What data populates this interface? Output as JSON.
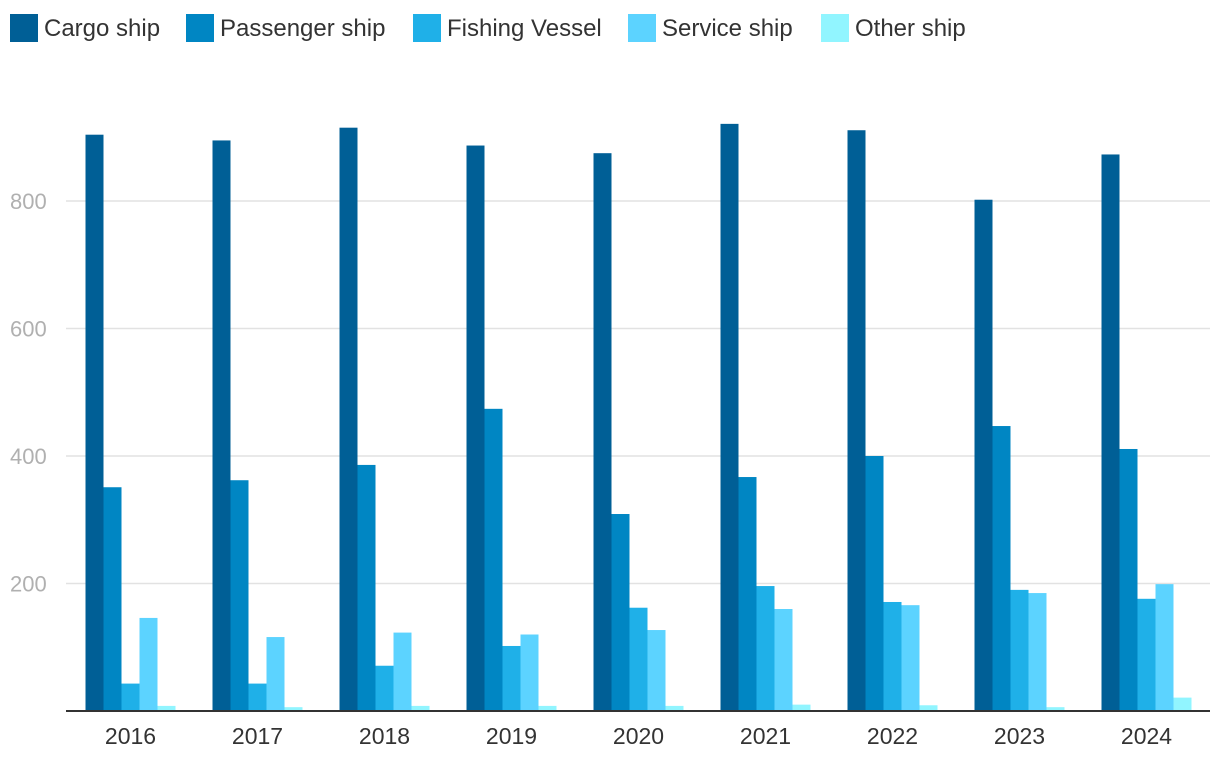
{
  "chart_data": {
    "type": "bar",
    "title": "",
    "xlabel": "",
    "ylabel": "",
    "categories": [
      "2016",
      "2017",
      "2018",
      "2019",
      "2020",
      "2021",
      "2022",
      "2023",
      "2024"
    ],
    "ylim": [
      0,
      930
    ],
    "yticks": [
      200,
      400,
      600,
      800
    ],
    "grid": true,
    "legend_position": "top-left",
    "series": [
      {
        "name": "Cargo ship",
        "color": "#005f96",
        "values": [
          904,
          895,
          915,
          887,
          875,
          921,
          911,
          802,
          873
        ]
      },
      {
        "name": "Passenger ship",
        "color": "#0086c3",
        "values": [
          351,
          362,
          386,
          474,
          309,
          367,
          400,
          447,
          411
        ]
      },
      {
        "name": "Fishing Vessel",
        "color": "#1fb0e8",
        "values": [
          43,
          43,
          71,
          102,
          162,
          196,
          171,
          190,
          176
        ]
      },
      {
        "name": "Service ship",
        "color": "#5cd3ff",
        "values": [
          146,
          116,
          123,
          120,
          127,
          160,
          166,
          185,
          199
        ]
      },
      {
        "name": "Other ship",
        "color": "#91f5ff",
        "values": [
          8,
          6,
          8,
          8,
          8,
          10,
          9,
          6,
          21
        ]
      }
    ]
  }
}
